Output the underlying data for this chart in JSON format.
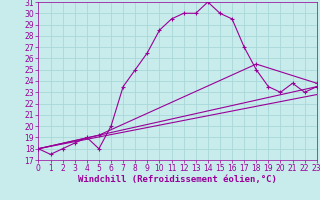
{
  "bg_color": "#c8ecec",
  "grid_color": "#a8d8d8",
  "line_color": "#990099",
  "xlabel": "Windchill (Refroidissement éolien,°C)",
  "xlim": [
    0,
    23
  ],
  "ylim": [
    17,
    31
  ],
  "xticks": [
    0,
    1,
    2,
    3,
    4,
    5,
    6,
    7,
    8,
    9,
    10,
    11,
    12,
    13,
    14,
    15,
    16,
    17,
    18,
    19,
    20,
    21,
    22,
    23
  ],
  "yticks": [
    17,
    18,
    19,
    20,
    21,
    22,
    23,
    24,
    25,
    26,
    27,
    28,
    29,
    30,
    31
  ],
  "curve_x": [
    0,
    1,
    2,
    3,
    4,
    5,
    6,
    7,
    8,
    9,
    10,
    11,
    12,
    13,
    14,
    15,
    16,
    17,
    18,
    19,
    20,
    21,
    22,
    23
  ],
  "curve_y": [
    18.0,
    17.5,
    18.0,
    18.5,
    19.0,
    18.0,
    20.0,
    23.5,
    25.0,
    26.5,
    28.5,
    29.5,
    30.0,
    30.0,
    31.0,
    30.0,
    29.5,
    27.0,
    25.0,
    23.5,
    23.0,
    23.8,
    23.0,
    23.5
  ],
  "line2_x": [
    0,
    23
  ],
  "line2_y": [
    18.0,
    23.5
  ],
  "line3_x": [
    0,
    23
  ],
  "line3_y": [
    18.0,
    22.8
  ],
  "line4_x": [
    0,
    5,
    18,
    23
  ],
  "line4_y": [
    18.0,
    19.2,
    25.5,
    23.8
  ],
  "font_size_xlabel": 6.5,
  "font_size_ticks": 5.5
}
